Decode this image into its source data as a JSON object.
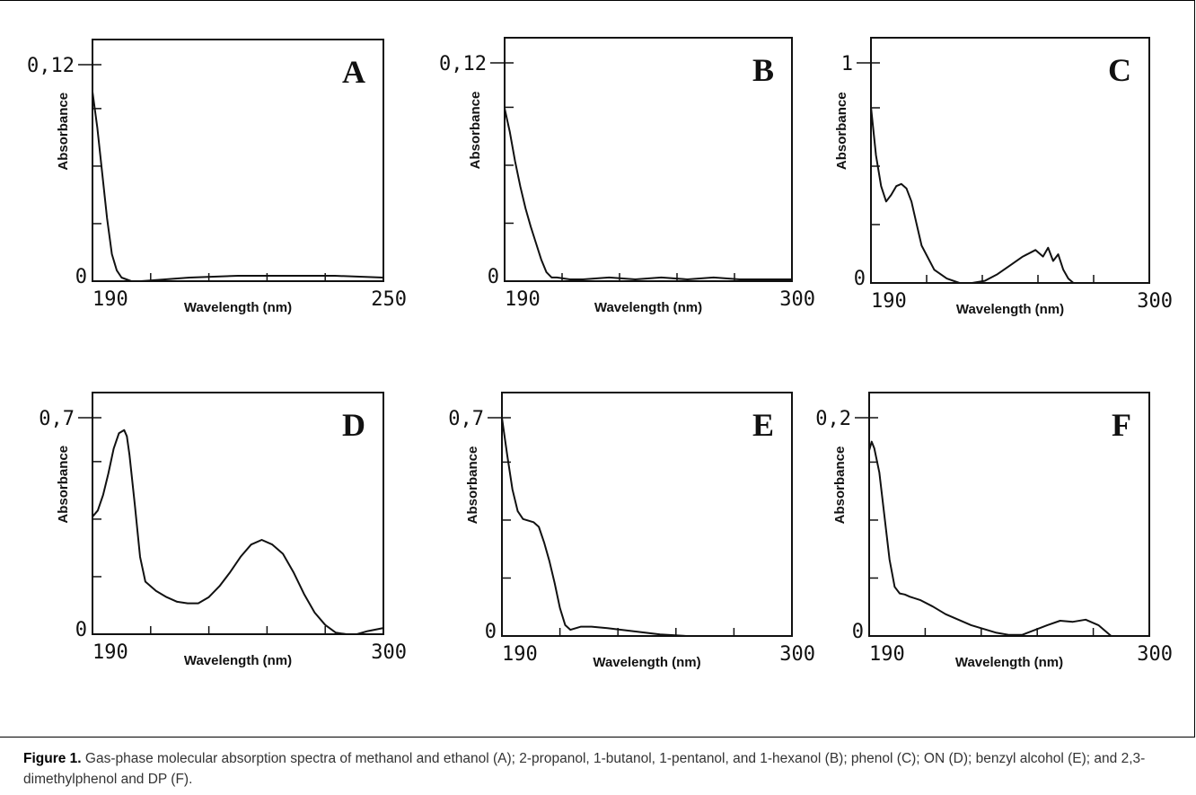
{
  "caption": {
    "label": "Figure 1.",
    "text": "Gas-phase molecular absorption spectra of methanol and ethanol (A); 2-propanol, 1-butanol, 1-pentanol, and 1-hexanol (B); phenol (C); ON (D); benzyl alcohol (E); and 2,3-dimethylphenol and DP (F)."
  },
  "chart_data": [
    {
      "type": "line",
      "panel": "A",
      "xlabel": "Wavelength (nm)",
      "ylabel": "Absorbance",
      "x_tick_labels": [
        "190",
        "250"
      ],
      "y_tick_labels": [
        "0",
        "0,12"
      ],
      "xlim": [
        190,
        250
      ],
      "ylim": [
        0,
        0.12
      ],
      "x": [
        190,
        191,
        192,
        193,
        194,
        195,
        196,
        197,
        198,
        200,
        205,
        210,
        220,
        230,
        240,
        250
      ],
      "y": [
        0.105,
        0.085,
        0.06,
        0.035,
        0.015,
        0.006,
        0.002,
        0.001,
        0.0,
        0.0,
        0.001,
        0.002,
        0.003,
        0.003,
        0.003,
        0.002
      ]
    },
    {
      "type": "line",
      "panel": "B",
      "xlabel": "Wavelength (nm)",
      "ylabel": "Absorbance",
      "x_tick_labels": [
        "190",
        "300"
      ],
      "y_tick_labels": [
        "0",
        "0,12"
      ],
      "xlim": [
        190,
        300
      ],
      "ylim": [
        0,
        0.12
      ],
      "x": [
        190,
        192,
        194,
        196,
        198,
        200,
        202,
        204,
        206,
        208,
        210,
        215,
        220,
        230,
        240,
        250,
        260,
        270,
        280,
        290,
        300
      ],
      "y": [
        0.095,
        0.082,
        0.066,
        0.052,
        0.04,
        0.03,
        0.021,
        0.012,
        0.005,
        0.002,
        0.002,
        0.001,
        0.001,
        0.002,
        0.001,
        0.002,
        0.001,
        0.002,
        0.001,
        0.001,
        0.001
      ]
    },
    {
      "type": "line",
      "panel": "C",
      "xlabel": "Wavelength (nm)",
      "ylabel": "Absorbance",
      "x_tick_labels": [
        "190",
        "300"
      ],
      "y_tick_labels": [
        "0",
        "1"
      ],
      "xlim": [
        190,
        300
      ],
      "ylim": [
        0,
        1
      ],
      "x": [
        190,
        192,
        194,
        196,
        198,
        200,
        202,
        204,
        206,
        208,
        210,
        215,
        220,
        225,
        230,
        235,
        240,
        245,
        250,
        255,
        258,
        260,
        262,
        264,
        266,
        268,
        270,
        272,
        275,
        280,
        290,
        300
      ],
      "y": [
        0.8,
        0.58,
        0.44,
        0.37,
        0.4,
        0.44,
        0.45,
        0.43,
        0.37,
        0.27,
        0.17,
        0.06,
        0.02,
        0.0,
        0.0,
        0.01,
        0.04,
        0.08,
        0.12,
        0.15,
        0.12,
        0.16,
        0.1,
        0.13,
        0.06,
        0.02,
        0.0,
        0.0,
        0.0,
        0.0,
        0.0,
        0.0
      ]
    },
    {
      "type": "line",
      "panel": "D",
      "xlabel": "Wavelength (nm)",
      "ylabel": "Absorbance",
      "x_tick_labels": [
        "190",
        "300"
      ],
      "y_tick_labels": [
        "0",
        "0,7"
      ],
      "xlim": [
        190,
        300
      ],
      "ylim": [
        0,
        0.7
      ],
      "x": [
        190,
        192,
        194,
        196,
        198,
        200,
        202,
        203,
        204,
        206,
        208,
        210,
        214,
        218,
        222,
        226,
        230,
        234,
        238,
        242,
        246,
        250,
        254,
        258,
        262,
        266,
        270,
        274,
        278,
        282,
        286,
        290,
        294,
        300
      ],
      "y": [
        0.38,
        0.4,
        0.45,
        0.52,
        0.6,
        0.65,
        0.66,
        0.64,
        0.58,
        0.42,
        0.25,
        0.17,
        0.14,
        0.12,
        0.105,
        0.1,
        0.1,
        0.12,
        0.155,
        0.2,
        0.25,
        0.29,
        0.305,
        0.29,
        0.26,
        0.2,
        0.13,
        0.07,
        0.03,
        0.005,
        0.0,
        0.0,
        0.01,
        0.02
      ]
    },
    {
      "type": "line",
      "panel": "E",
      "xlabel": "Wavelength (nm)",
      "ylabel": "Absorbance",
      "x_tick_labels": [
        "190",
        "300"
      ],
      "y_tick_labels": [
        "0",
        "0,7"
      ],
      "xlim": [
        190,
        300
      ],
      "ylim": [
        0,
        0.7
      ],
      "x": [
        190,
        192,
        194,
        196,
        198,
        200,
        202,
        204,
        206,
        208,
        210,
        212,
        214,
        216,
        218,
        220,
        224,
        230,
        240,
        250,
        260,
        270,
        280,
        290,
        300
      ],
      "y": [
        0.7,
        0.58,
        0.47,
        0.4,
        0.375,
        0.37,
        0.365,
        0.35,
        0.3,
        0.24,
        0.17,
        0.09,
        0.035,
        0.02,
        0.025,
        0.03,
        0.03,
        0.025,
        0.015,
        0.005,
        0.0,
        0.0,
        0.0,
        0.0,
        0.0
      ]
    },
    {
      "type": "line",
      "panel": "F",
      "xlabel": "Wavelength (nm)",
      "ylabel": "Absorbance",
      "x_tick_labels": [
        "190",
        "300"
      ],
      "y_tick_labels": [
        "0",
        "0,2"
      ],
      "xlim": [
        190,
        300
      ],
      "ylim": [
        0,
        0.2
      ],
      "x": [
        190,
        191,
        192,
        194,
        196,
        198,
        200,
        202,
        204,
        206,
        210,
        215,
        220,
        230,
        240,
        245,
        250,
        260,
        265,
        270,
        275,
        280,
        285,
        290,
        300
      ],
      "y": [
        0.17,
        0.178,
        0.172,
        0.15,
        0.11,
        0.07,
        0.045,
        0.039,
        0.038,
        0.036,
        0.033,
        0.027,
        0.02,
        0.01,
        0.003,
        0.001,
        0.001,
        0.01,
        0.014,
        0.013,
        0.015,
        0.01,
        0.0,
        0.0,
        0.0
      ]
    }
  ]
}
